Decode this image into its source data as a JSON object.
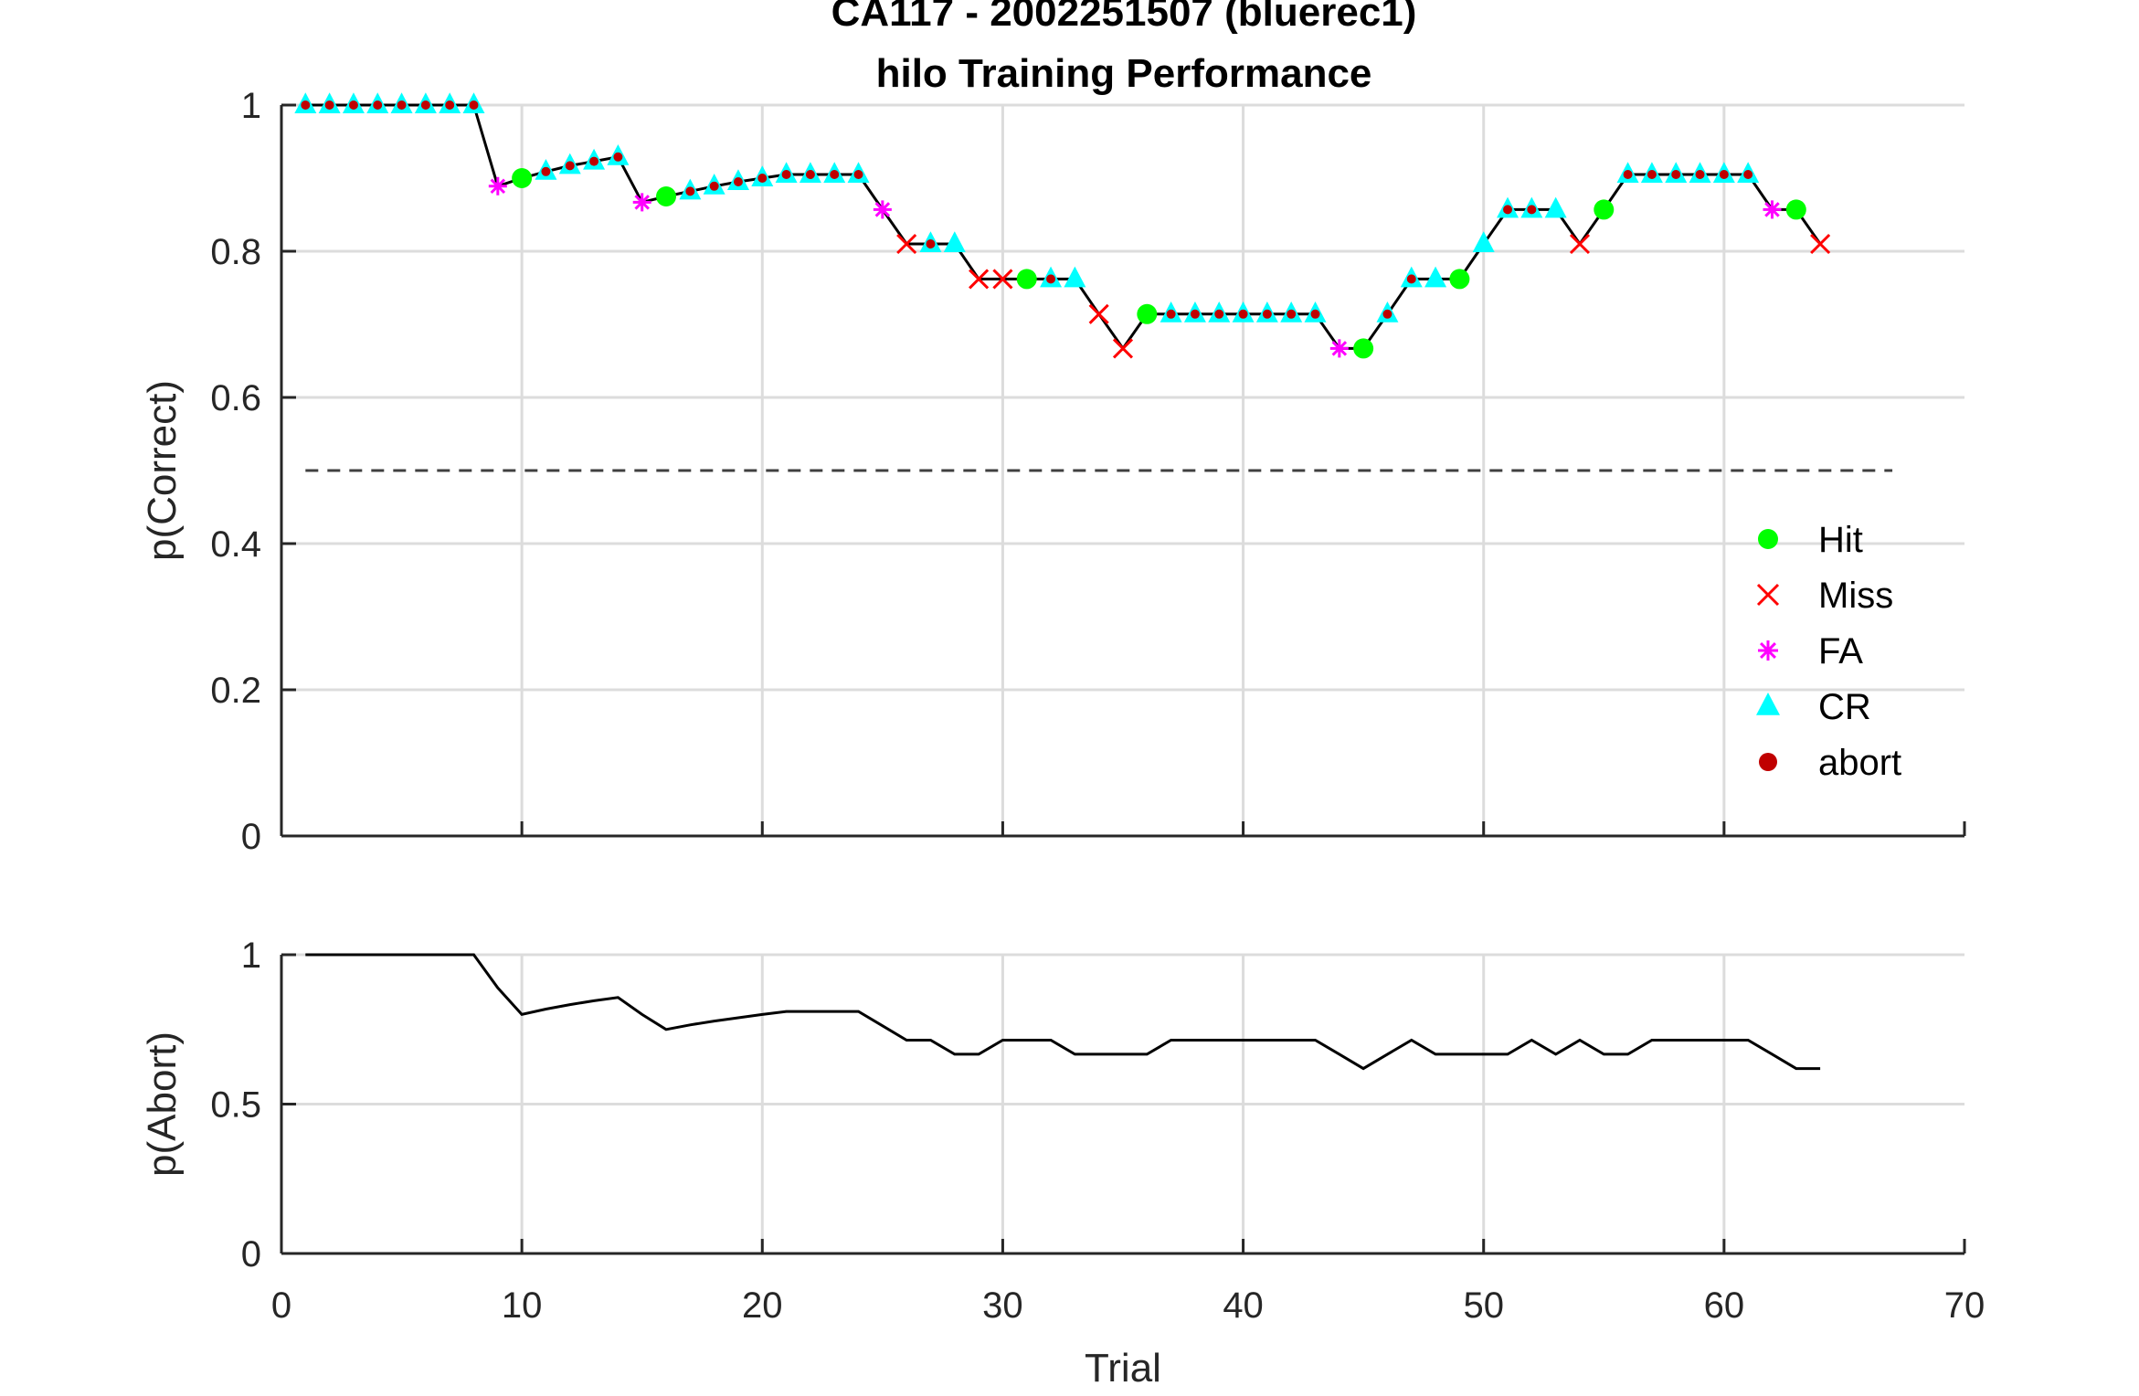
{
  "title_line1": "CA117 - 2002251507 (bluerec1)",
  "title_line2": "hilo Training Performance",
  "chart_data": [
    {
      "type": "line",
      "ylabel": "p(Correct)",
      "xlabel": "",
      "xlim": [
        0,
        70
      ],
      "ylim": [
        0,
        1
      ],
      "yticks": [
        "0",
        "0.2",
        "0.4",
        "0.6",
        "0.8",
        "1"
      ],
      "ytick_values": [
        0,
        0.2,
        0.4,
        0.6,
        0.8,
        1
      ],
      "xticks": [
        0,
        10,
        20,
        30,
        40,
        50,
        60,
        70
      ],
      "grid": true,
      "chance_line": 0.5,
      "legend_position": "right",
      "legend": [
        {
          "name": "Hit",
          "color": "#00ff00",
          "marker": "dot"
        },
        {
          "name": "Miss",
          "color": "#ff0000",
          "marker": "x"
        },
        {
          "name": "FA",
          "color": "#ff00ff",
          "marker": "star"
        },
        {
          "name": "CR",
          "color": "#00ffff",
          "marker": "triangle"
        },
        {
          "name": "abort",
          "color": "#c00000",
          "marker": "dot"
        }
      ],
      "x": [
        1,
        2,
        3,
        4,
        5,
        6,
        7,
        8,
        9,
        10,
        11,
        12,
        13,
        14,
        15,
        16,
        17,
        18,
        19,
        20,
        21,
        22,
        23,
        24,
        25,
        26,
        27,
        28,
        29,
        30,
        31,
        32,
        33,
        34,
        35,
        36,
        37,
        38,
        39,
        40,
        41,
        42,
        43,
        44,
        45,
        46,
        47,
        48,
        49,
        50,
        51,
        52,
        53,
        54,
        55,
        56,
        57,
        58,
        59,
        60,
        61,
        62,
        63,
        64
      ],
      "y": [
        1,
        1,
        1,
        1,
        1,
        1,
        1,
        1,
        0.889,
        0.9,
        0.909,
        0.917,
        0.923,
        0.929,
        0.867,
        0.875,
        0.882,
        0.889,
        0.895,
        0.9,
        0.905,
        0.905,
        0.905,
        0.905,
        0.857,
        0.81,
        0.81,
        0.81,
        0.762,
        0.762,
        0.762,
        0.762,
        0.762,
        0.714,
        0.667,
        0.714,
        0.714,
        0.714,
        0.714,
        0.714,
        0.714,
        0.714,
        0.714,
        0.667,
        0.667,
        0.714,
        0.762,
        0.762,
        0.762,
        0.81,
        0.857,
        0.857,
        0.857,
        0.81,
        0.857,
        0.905,
        0.905,
        0.905,
        0.905,
        0.905,
        0.905,
        0.857,
        0.857,
        0.81
      ],
      "outcome": [
        "CR",
        "CR",
        "CR",
        "CR",
        "CR",
        "CR",
        "CR",
        "CR",
        "FA",
        "Hit",
        "CR",
        "CR",
        "CR",
        "CR",
        "FA",
        "Hit",
        "CR",
        "CR",
        "CR",
        "CR",
        "CR",
        "CR",
        "CR",
        "CR",
        "FA",
        "Miss",
        "CR",
        "CR",
        "Miss",
        "Miss",
        "Hit",
        "CR",
        "CR",
        "Miss",
        "Miss",
        "Hit",
        "CR",
        "CR",
        "CR",
        "CR",
        "CR",
        "CR",
        "CR",
        "FA",
        "Hit",
        "CR",
        "CR",
        "CR",
        "Hit",
        "CR",
        "CR",
        "CR",
        "CR",
        "Miss",
        "Hit",
        "CR",
        "CR",
        "CR",
        "CR",
        "CR",
        "CR",
        "FA",
        "Hit",
        "Miss"
      ],
      "abort": [
        1,
        1,
        1,
        1,
        1,
        1,
        1,
        1,
        0,
        0,
        1,
        1,
        1,
        1,
        0,
        0,
        1,
        1,
        1,
        1,
        1,
        1,
        1,
        1,
        0,
        0,
        1,
        0,
        0,
        0,
        0,
        1,
        0,
        0,
        0,
        0,
        1,
        1,
        1,
        1,
        1,
        1,
        1,
        0,
        0,
        1,
        1,
        0,
        0,
        0,
        1,
        1,
        0,
        0,
        0,
        1,
        1,
        1,
        1,
        1,
        1,
        0,
        0,
        0
      ]
    },
    {
      "type": "line",
      "ylabel": "p(Abort)",
      "xlabel": "Trial",
      "xlim": [
        0,
        70
      ],
      "ylim": [
        0,
        1
      ],
      "yticks": [
        "0",
        "0.5",
        "1"
      ],
      "ytick_values": [
        0,
        0.5,
        1
      ],
      "xticks": [
        "0",
        "10",
        "20",
        "30",
        "40",
        "50",
        "60",
        "70"
      ],
      "xtick_values": [
        0,
        10,
        20,
        30,
        40,
        50,
        60,
        70
      ],
      "grid": true,
      "x": [
        1,
        2,
        3,
        4,
        5,
        6,
        7,
        8,
        9,
        10,
        11,
        12,
        13,
        14,
        15,
        16,
        17,
        18,
        19,
        20,
        21,
        22,
        23,
        24,
        25,
        26,
        27,
        28,
        29,
        30,
        31,
        32,
        33,
        34,
        35,
        36,
        37,
        38,
        39,
        40,
        41,
        42,
        43,
        44,
        45,
        46,
        47,
        48,
        49,
        50,
        51,
        52,
        53,
        54,
        55,
        56,
        57,
        58,
        59,
        60,
        61,
        62,
        63,
        64
      ],
      "y": [
        1,
        1,
        1,
        1,
        1,
        1,
        1,
        1,
        0.889,
        0.8,
        0.818,
        0.833,
        0.846,
        0.857,
        0.8,
        0.75,
        0.765,
        0.778,
        0.789,
        0.8,
        0.81,
        0.81,
        0.81,
        0.81,
        0.762,
        0.714,
        0.714,
        0.667,
        0.667,
        0.714,
        0.714,
        0.714,
        0.667,
        0.667,
        0.667,
        0.667,
        0.714,
        0.714,
        0.714,
        0.714,
        0.714,
        0.714,
        0.714,
        0.667,
        0.619,
        0.667,
        0.714,
        0.667,
        0.667,
        0.667,
        0.667,
        0.714,
        0.667,
        0.714,
        0.667,
        0.667,
        0.714,
        0.714,
        0.714,
        0.714,
        0.714,
        0.667,
        0.619,
        0.619
      ]
    }
  ]
}
